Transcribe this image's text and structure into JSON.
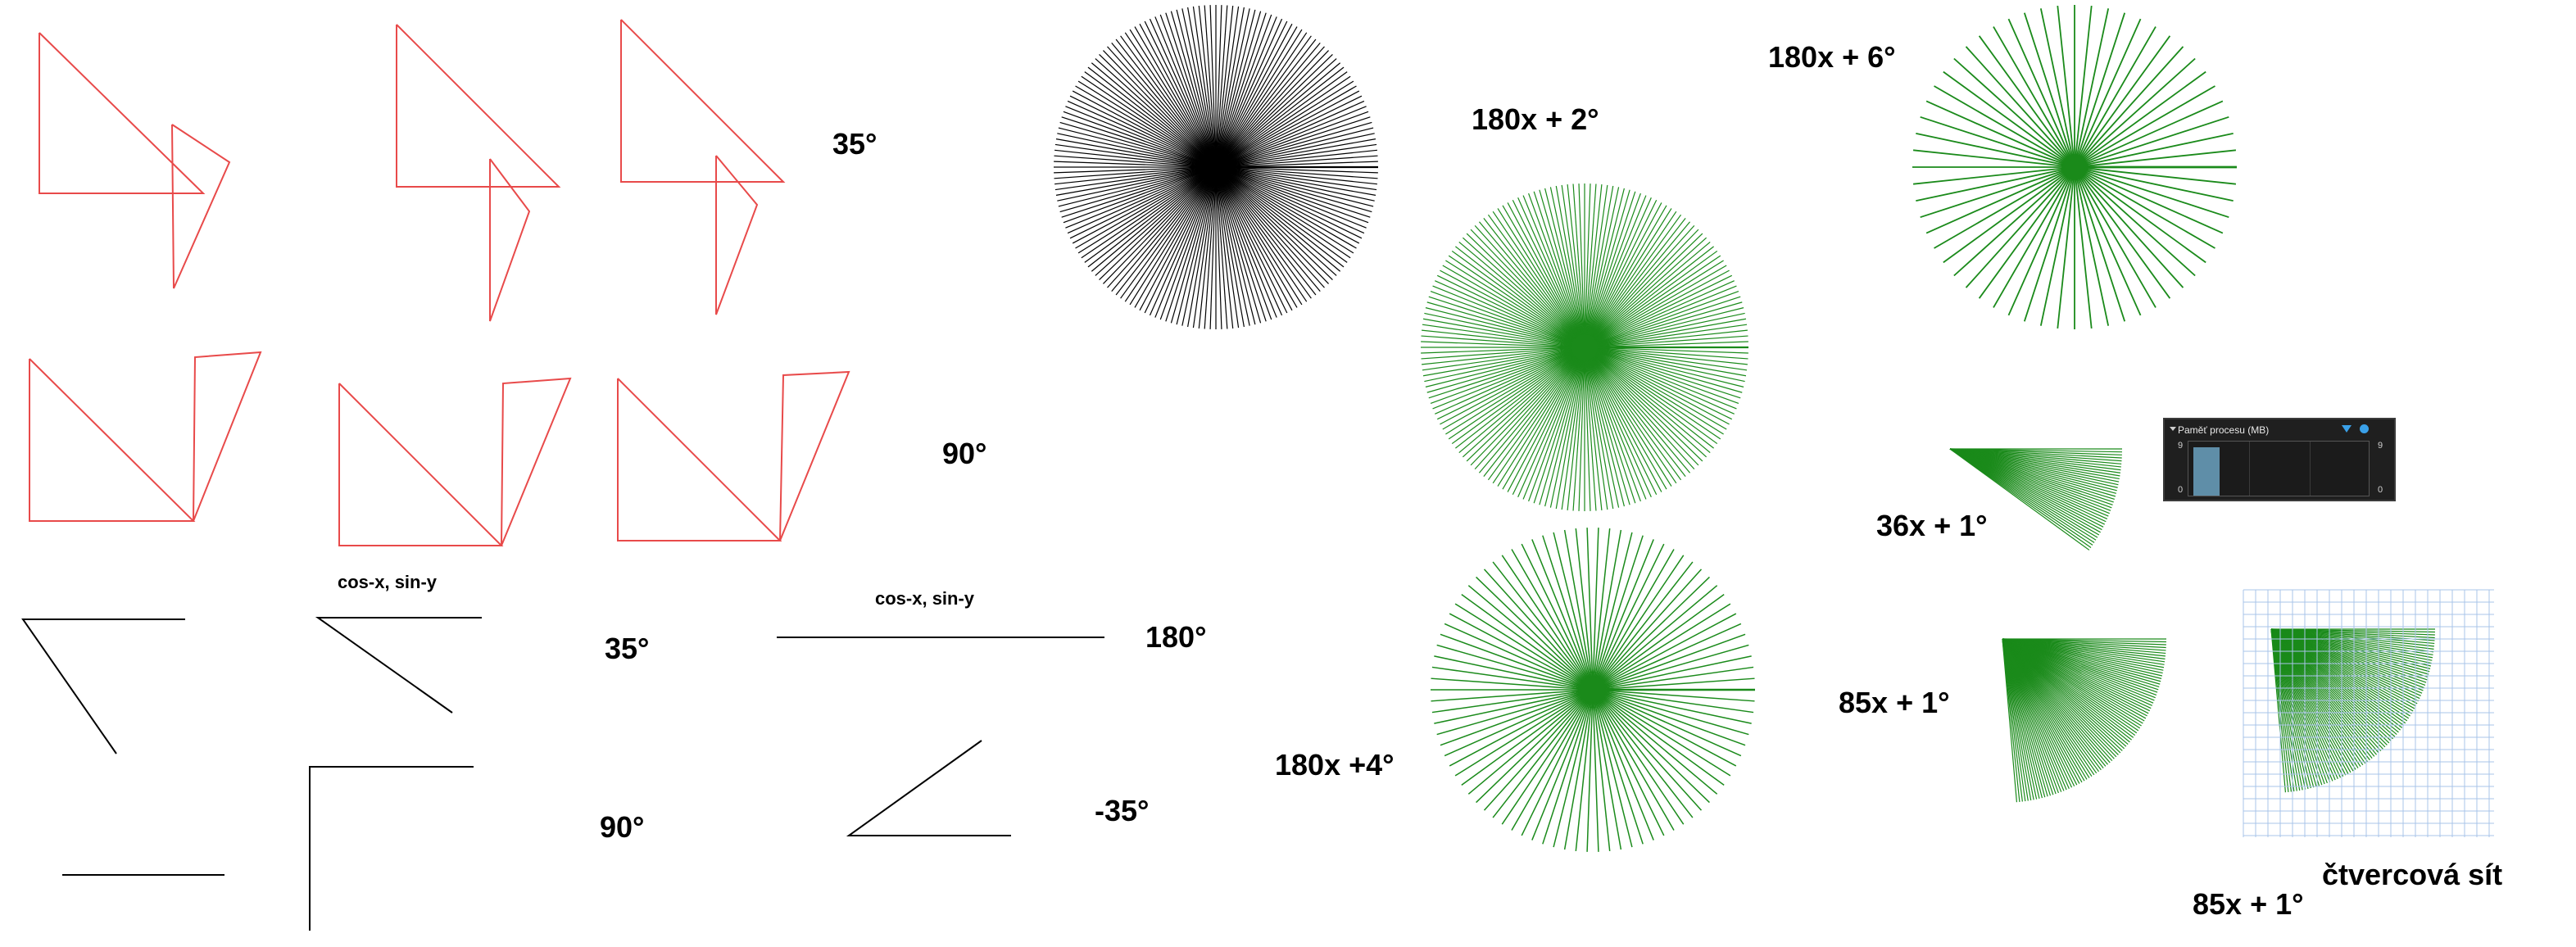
{
  "labels": {
    "deg35_top": "35°",
    "deg90_mid": "90°",
    "cosxsiny_left": "cos-x, sin-y",
    "deg35_bottom": "35°",
    "deg90_bottom": "90°",
    "cosxsiny_center": "cos-x, sin-y",
    "deg180": "180°",
    "deg_minus35": "-35°",
    "star_2": "180x + 2°",
    "star_4": "180x +4°",
    "star_6": "180x + 6°",
    "fan_36": "36x + 1°",
    "fan_85": "85x + 1°",
    "fan_85_grid": "85x + 1°",
    "grid_caption": "čtvercová sít"
  },
  "memory_panel": {
    "title": "Paměť procesu (MB)",
    "axis_max_left": "9",
    "axis_min_left": "0",
    "axis_max_right": "9",
    "axis_min_right": "0",
    "filter_icon": "filter-icon",
    "indicator_icon": "dot-icon",
    "bar_level": 0.9
  },
  "colors": {
    "red": "#e84a4a",
    "black": "#000000",
    "green": "#1a8a1a",
    "grid": "#a9c4ea",
    "panel_bg": "#1f1f1f",
    "bar": "#5f8ea8"
  }
}
